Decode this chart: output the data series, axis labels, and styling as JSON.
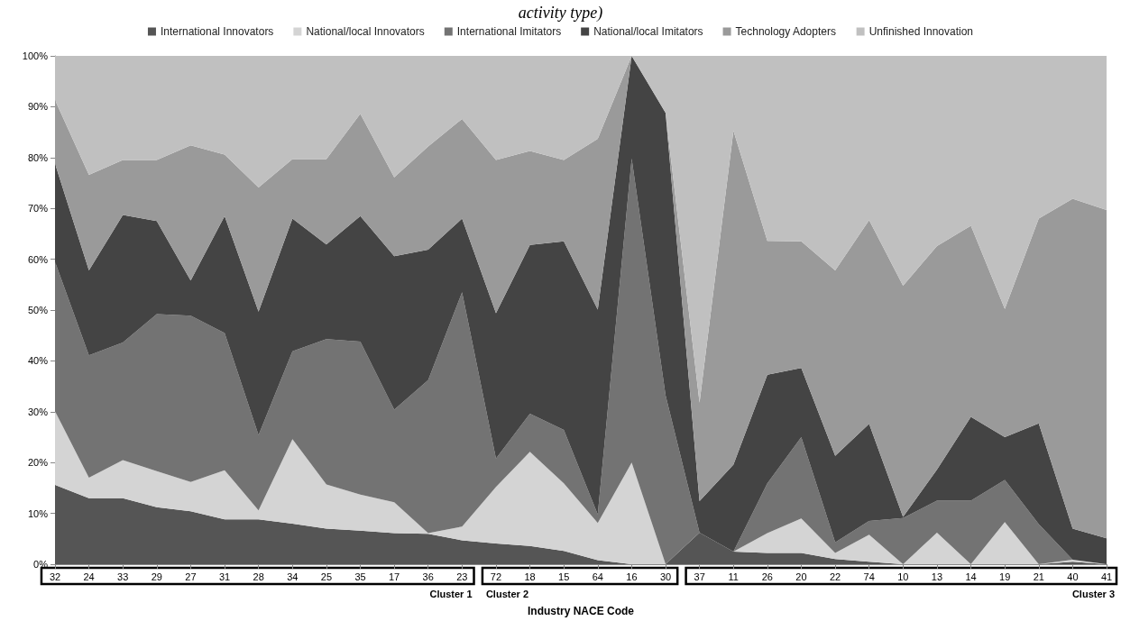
{
  "chart_data": {
    "type": "area",
    "stacked": true,
    "title": "activity type)",
    "xlabel": "Industry NACE Code",
    "annotations": [
      "Cluster 1",
      "Cluster 2",
      "Cluster 3"
    ],
    "categories": [
      "32",
      "24",
      "33",
      "29",
      "27",
      "31",
      "28",
      "34",
      "25",
      "35",
      "17",
      "36",
      "23",
      "72",
      "18",
      "15",
      "64",
      "16",
      "30",
      "37",
      "11",
      "26",
      "20",
      "22",
      "74",
      "10",
      "13",
      "14",
      "19",
      "21",
      "40",
      "41"
    ],
    "ylim": [
      0,
      100
    ],
    "yticks": [
      {
        "value": 0,
        "label": "0%"
      },
      {
        "value": 10,
        "label": "10%"
      },
      {
        "value": 20,
        "label": "20%"
      },
      {
        "value": 30,
        "label": "30%"
      },
      {
        "value": 40,
        "label": "40%"
      },
      {
        "value": 50,
        "label": "50%"
      },
      {
        "value": 60,
        "label": "60%"
      },
      {
        "value": 70,
        "label": "70%"
      },
      {
        "value": 80,
        "label": "80%"
      },
      {
        "value": 90,
        "label": "90%"
      },
      {
        "value": 100,
        "label": "100%"
      }
    ],
    "grid": false,
    "legend": "top",
    "series": [
      {
        "name": "International Innovators",
        "color": "#555555",
        "values": [
          15.6,
          13.0,
          13.0,
          11.2,
          10.4,
          8.8,
          8.8,
          8.0,
          7.0,
          6.6,
          6.1,
          6.0,
          4.7,
          4.1,
          3.6,
          2.6,
          0.8,
          0,
          0,
          6.2,
          2.5,
          2.2,
          2.2,
          1.0,
          0.5,
          0,
          0,
          0,
          0,
          0,
          0.5,
          0
        ]
      },
      {
        "name": "National/local Innovators",
        "color": "#d4d4d4",
        "values": [
          14.5,
          4.0,
          7.5,
          7.1,
          5.8,
          9.7,
          1.8,
          16.6,
          8.7,
          7.1,
          6.1,
          0.1,
          2.7,
          11.1,
          18.5,
          13.3,
          7.3,
          20.0,
          0,
          0,
          0,
          3.9,
          6.8,
          1.2,
          5.3,
          0,
          6.2,
          0,
          8.3,
          0,
          0.4,
          0
        ]
      },
      {
        "name": "International Imitators",
        "color": "#737373",
        "values": [
          29.4,
          24.1,
          23.1,
          30.9,
          32.7,
          27.0,
          14.8,
          17.3,
          28.6,
          30.1,
          18.2,
          30.1,
          46.1,
          5.6,
          7.5,
          10.5,
          1.7,
          59.8,
          33.2,
          0,
          0,
          9.8,
          16.0,
          2.1,
          2.7,
          9.1,
          6.3,
          12.5,
          8.3,
          7.9,
          0,
          0
        ]
      },
      {
        "name": "National/local Imitators",
        "color": "#444444",
        "values": [
          19.3,
          16.7,
          25.1,
          18.3,
          6.9,
          23.0,
          24.3,
          26.1,
          18.6,
          24.7,
          30.2,
          25.7,
          14.5,
          28.6,
          33.2,
          37.1,
          40.3,
          20.2,
          55.6,
          6.2,
          17.1,
          21.4,
          13.6,
          17.0,
          19.1,
          0.2,
          6.1,
          16.5,
          8.4,
          19.8,
          6.1,
          5.1
        ]
      },
      {
        "name": "Technology Adopters",
        "color": "#9a9a9a",
        "values": [
          12.5,
          18.8,
          10.8,
          12.0,
          26.6,
          12.1,
          24.4,
          11.7,
          16.8,
          20.1,
          15.5,
          20.3,
          19.6,
          30.1,
          18.5,
          16.0,
          33.6,
          0,
          0,
          19.4,
          65.7,
          26.3,
          24.9,
          36.5,
          40.1,
          45.5,
          44.0,
          37.6,
          25.2,
          40.3,
          64.9,
          64.6
        ]
      },
      {
        "name": "Unfinished Innovation",
        "color": "#c0c0c0",
        "values": [
          8.7,
          23.4,
          20.5,
          20.5,
          17.6,
          19.4,
          25.9,
          20.3,
          20.3,
          11.4,
          23.9,
          17.8,
          12.4,
          20.5,
          18.7,
          20.5,
          16.3,
          0,
          11.2,
          68.2,
          14.7,
          36.4,
          36.5,
          42.2,
          32.3,
          45.2,
          37.4,
          33.4,
          49.8,
          32.0,
          28.1,
          30.3
        ]
      }
    ]
  }
}
